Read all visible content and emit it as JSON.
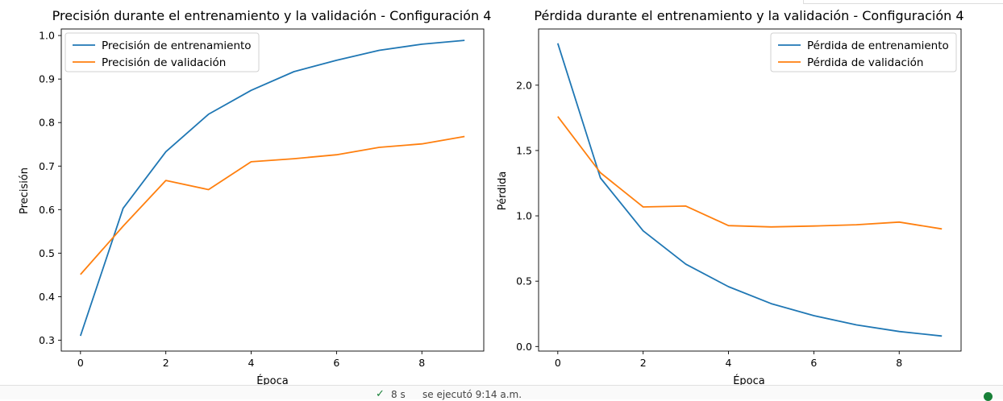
{
  "chart_data": [
    {
      "type": "line",
      "title": "Precisión durante el entrenamiento y la validación - Configuración 4",
      "xlabel": "Época",
      "ylabel": "Precisión",
      "x": [
        0,
        1,
        2,
        3,
        4,
        5,
        6,
        7,
        8,
        9
      ],
      "xticks": [
        0,
        2,
        4,
        6,
        8
      ],
      "yticks": [
        0.3,
        0.4,
        0.5,
        0.6,
        0.7,
        0.8,
        0.9,
        1.0
      ],
      "xlim": [
        -0.45,
        9.45
      ],
      "ylim": [
        0.275,
        1.015
      ],
      "grid": false,
      "legend_position": "upper left",
      "series": [
        {
          "name": "Precisión de entrenamiento",
          "color": "#1f77b4",
          "values": [
            0.31,
            0.603,
            0.733,
            0.819,
            0.874,
            0.917,
            0.943,
            0.966,
            0.98,
            0.989
          ]
        },
        {
          "name": "Precisión de validación",
          "color": "#ff7f0e",
          "values": [
            0.451,
            0.562,
            0.667,
            0.646,
            0.71,
            0.717,
            0.726,
            0.743,
            0.751,
            0.768
          ]
        }
      ]
    },
    {
      "type": "line",
      "title": "Pérdida durante el entrenamiento y la validación - Configuración 4",
      "xlabel": "Época",
      "ylabel": "Pérdida",
      "x": [
        0,
        1,
        2,
        3,
        4,
        5,
        6,
        7,
        8,
        9
      ],
      "xticks": [
        0,
        2,
        4,
        6,
        8
      ],
      "yticks": [
        0.0,
        0.5,
        1.0,
        1.5,
        2.0
      ],
      "xlim": [
        -0.45,
        9.45
      ],
      "ylim": [
        -0.035,
        2.43
      ],
      "grid": false,
      "legend_position": "upper right",
      "series": [
        {
          "name": "Pérdida de entrenamiento",
          "color": "#1f77b4",
          "values": [
            2.32,
            1.29,
            0.885,
            0.63,
            0.458,
            0.328,
            0.236,
            0.165,
            0.115,
            0.08
          ]
        },
        {
          "name": "Pérdida de validación",
          "color": "#ff7f0e",
          "values": [
            1.76,
            1.33,
            1.068,
            1.075,
            0.925,
            0.915,
            0.922,
            0.932,
            0.952,
            0.9
          ]
        }
      ]
    }
  ],
  "status": {
    "check_icon": "✓",
    "duration": "8 s",
    "executed": "se ejecutó 9:14 a.m."
  }
}
